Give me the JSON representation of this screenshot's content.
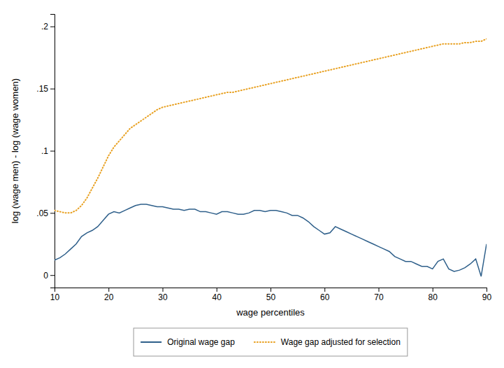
{
  "chart_data": {
    "type": "line",
    "xlabel": "wage percentiles",
    "ylabel": "log (wage men) - log (wage women)",
    "x": [
      10,
      11,
      12,
      13,
      14,
      15,
      16,
      17,
      18,
      19,
      20,
      21,
      22,
      23,
      24,
      25,
      26,
      27,
      28,
      29,
      30,
      31,
      32,
      33,
      34,
      35,
      36,
      37,
      38,
      39,
      40,
      41,
      42,
      43,
      44,
      45,
      46,
      47,
      48,
      49,
      50,
      51,
      52,
      53,
      54,
      55,
      56,
      57,
      58,
      59,
      60,
      61,
      62,
      63,
      64,
      65,
      66,
      67,
      68,
      69,
      70,
      71,
      72,
      73,
      74,
      75,
      76,
      77,
      78,
      79,
      80,
      81,
      82,
      83,
      84,
      85,
      86,
      87,
      88,
      89,
      90
    ],
    "series": [
      {
        "name": "Original wage gap",
        "color": "#2e5f8a",
        "line_style": "solid",
        "values": [
          0.012,
          0.014,
          0.017,
          0.021,
          0.025,
          0.031,
          0.034,
          0.036,
          0.039,
          0.044,
          0.049,
          0.051,
          0.05,
          0.052,
          0.054,
          0.056,
          0.057,
          0.057,
          0.056,
          0.055,
          0.055,
          0.054,
          0.053,
          0.053,
          0.052,
          0.053,
          0.053,
          0.051,
          0.051,
          0.05,
          0.049,
          0.051,
          0.051,
          0.05,
          0.049,
          0.049,
          0.05,
          0.052,
          0.052,
          0.051,
          0.052,
          0.052,
          0.051,
          0.05,
          0.048,
          0.048,
          0.046,
          0.043,
          0.039,
          0.036,
          0.033,
          0.034,
          0.039,
          0.037,
          0.035,
          0.033,
          0.031,
          0.029,
          0.027,
          0.025,
          0.023,
          0.021,
          0.019,
          0.015,
          0.013,
          0.011,
          0.011,
          0.009,
          0.007,
          0.007,
          0.005,
          0.011,
          0.013,
          0.005,
          0.003,
          0.004,
          0.006,
          0.009,
          0.013,
          -0.001,
          0.025
        ]
      },
      {
        "name": "Wage gap adjusted for selection",
        "color": "#e8a020",
        "line_style": "dotted",
        "values": [
          0.052,
          0.051,
          0.05,
          0.05,
          0.052,
          0.056,
          0.062,
          0.07,
          0.078,
          0.087,
          0.096,
          0.103,
          0.108,
          0.113,
          0.118,
          0.121,
          0.124,
          0.127,
          0.13,
          0.133,
          0.135,
          0.136,
          0.137,
          0.138,
          0.139,
          0.14,
          0.141,
          0.142,
          0.143,
          0.144,
          0.145,
          0.146,
          0.147,
          0.147,
          0.148,
          0.149,
          0.15,
          0.151,
          0.152,
          0.153,
          0.154,
          0.155,
          0.156,
          0.157,
          0.158,
          0.159,
          0.16,
          0.161,
          0.162,
          0.163,
          0.164,
          0.165,
          0.166,
          0.167,
          0.168,
          0.169,
          0.17,
          0.171,
          0.172,
          0.173,
          0.174,
          0.175,
          0.176,
          0.177,
          0.178,
          0.179,
          0.18,
          0.181,
          0.182,
          0.183,
          0.184,
          0.185,
          0.186,
          0.186,
          0.186,
          0.186,
          0.187,
          0.187,
          0.188,
          0.188,
          0.19
        ]
      }
    ],
    "xlim": [
      10,
      90
    ],
    "ylim": [
      -0.01,
      0.21
    ],
    "xticks": [
      10,
      20,
      30,
      40,
      50,
      60,
      70,
      80,
      90
    ],
    "yticks": [
      0,
      {
        "value": 0.05,
        "label": ".05"
      },
      {
        "value": 0.1,
        "label": ".1"
      },
      {
        "value": 0.15,
        "label": ".15"
      },
      {
        "value": 0.2,
        "label": ".2"
      }
    ],
    "grid": false,
    "legend": "bottom"
  }
}
